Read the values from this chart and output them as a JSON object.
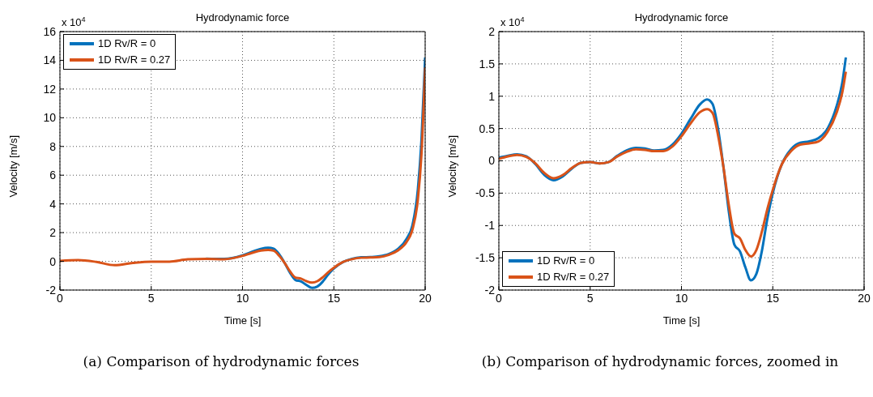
{
  "chart_data": [
    {
      "type": "line",
      "title": "Hydrodynamic force",
      "xlabel": "Time [s]",
      "ylabel": "Velocity [m/s]",
      "annotations": [
        "x 10$^{4}$",
        "(a) Comparison of hydrodynamic forces"
      ],
      "xlim": [
        0,
        20
      ],
      "xticks": [
        0,
        5,
        10,
        15,
        20
      ],
      "ylim": [
        -2,
        16
      ],
      "yticks": [
        -2,
        0,
        2,
        4,
        6,
        8,
        10,
        12,
        14,
        16
      ],
      "grid": true,
      "legend": "top left",
      "marker": "none",
      "line_style": "solid",
      "x": [
        0,
        1,
        2,
        3,
        4,
        5,
        6,
        7,
        8,
        9,
        10,
        10.5,
        11,
        11.4,
        11.7,
        12,
        12.3,
        12.6,
        12.9,
        13.2,
        13.5,
        13.8,
        14.1,
        14.4,
        14.7,
        15,
        15.5,
        16,
        16.5,
        17,
        17.5,
        18,
        18.5,
        19,
        19.3,
        19.6,
        19.8,
        20
      ],
      "series": [
        {
          "name": "1D Rv/R = 0",
          "color": "#0072bd",
          "values": [
            null,
            null,
            null,
            null,
            null,
            null,
            null,
            null,
            0.19,
            0.17,
            0.42,
            0.65,
            0.87,
            0.95,
            0.88,
            0.5,
            -0.1,
            -0.8,
            -1.3,
            -1.4,
            -1.65,
            -1.85,
            -1.75,
            -1.4,
            -0.9,
            -0.5,
            -0.05,
            0.18,
            0.28,
            0.3,
            0.35,
            0.5,
            0.85,
            1.6,
            2.5,
            5,
            8.5,
            14.2
          ]
        },
        {
          "name": "1D Rv/R = 0.27",
          "color": "#d95319",
          "values": [
            0.03,
            0.09,
            -0.04,
            -0.27,
            -0.11,
            -0.02,
            -0.02,
            0.14,
            0.17,
            0.15,
            0.38,
            0.58,
            0.75,
            0.8,
            0.74,
            0.4,
            -0.1,
            -0.7,
            -1.13,
            -1.2,
            -1.38,
            -1.48,
            -1.38,
            -1.1,
            -0.75,
            -0.45,
            -0.05,
            0.15,
            0.25,
            0.27,
            0.3,
            0.45,
            0.75,
            1.38,
            2.2,
            4.3,
            7.5,
            13.5
          ]
        }
      ]
    },
    {
      "type": "line",
      "title": "Hydrodynamic force",
      "xlabel": "Time [s]",
      "ylabel": "Velocity [m/s]",
      "annotations": [
        "x 10$^{4}$",
        "(b) Comparison of hydrodynamic forces, zoomed in"
      ],
      "xlim": [
        0,
        20
      ],
      "xticks": [
        0,
        5,
        10,
        15,
        20
      ],
      "ylim": [
        -2,
        2
      ],
      "yticks": [
        -2,
        -1.5,
        -1,
        -0.5,
        0,
        0.5,
        1,
        1.5,
        2
      ],
      "grid": true,
      "legend": "bottom left",
      "marker": "none",
      "line_style": "solid",
      "x": [
        0,
        0.5,
        1,
        1.5,
        2,
        2.5,
        3,
        3.5,
        4,
        4.5,
        5,
        5.5,
        6,
        6.5,
        7,
        7.5,
        8,
        8.5,
        9,
        9.5,
        10,
        10.5,
        11,
        11.4,
        11.7,
        12,
        12.3,
        12.6,
        12.9,
        13.2,
        13.5,
        13.8,
        14.1,
        14.4,
        14.7,
        15,
        15.5,
        16,
        16.5,
        17,
        17.5,
        18,
        18.5,
        18.8,
        19
      ],
      "series": [
        {
          "name": "1D Rv/R = 0",
          "color": "#0072bd",
          "values": [
            0.05,
            0.08,
            0.1,
            0.07,
            -0.05,
            -0.22,
            -0.3,
            -0.24,
            -0.12,
            -0.03,
            -0.02,
            -0.04,
            -0.02,
            0.08,
            0.16,
            0.2,
            0.19,
            0.16,
            0.17,
            0.25,
            0.42,
            0.65,
            0.87,
            0.95,
            0.88,
            0.5,
            -0.1,
            -0.8,
            -1.3,
            -1.4,
            -1.65,
            -1.85,
            -1.75,
            -1.4,
            -0.9,
            -0.5,
            -0.05,
            0.18,
            0.28,
            0.3,
            0.35,
            0.5,
            0.85,
            1.2,
            1.6
          ]
        },
        {
          "name": "1D Rv/R = 0.27",
          "color": "#d95319",
          "values": [
            0.03,
            0.07,
            0.09,
            0.06,
            -0.04,
            -0.19,
            -0.27,
            -0.22,
            -0.11,
            -0.03,
            -0.02,
            -0.04,
            -0.02,
            0.07,
            0.14,
            0.18,
            0.17,
            0.15,
            0.15,
            0.22,
            0.38,
            0.58,
            0.75,
            0.8,
            0.74,
            0.4,
            -0.1,
            -0.7,
            -1.13,
            -1.2,
            -1.38,
            -1.48,
            -1.38,
            -1.1,
            -0.75,
            -0.45,
            -0.05,
            0.15,
            0.25,
            0.27,
            0.3,
            0.45,
            0.75,
            1.05,
            1.38
          ]
        }
      ]
    }
  ]
}
